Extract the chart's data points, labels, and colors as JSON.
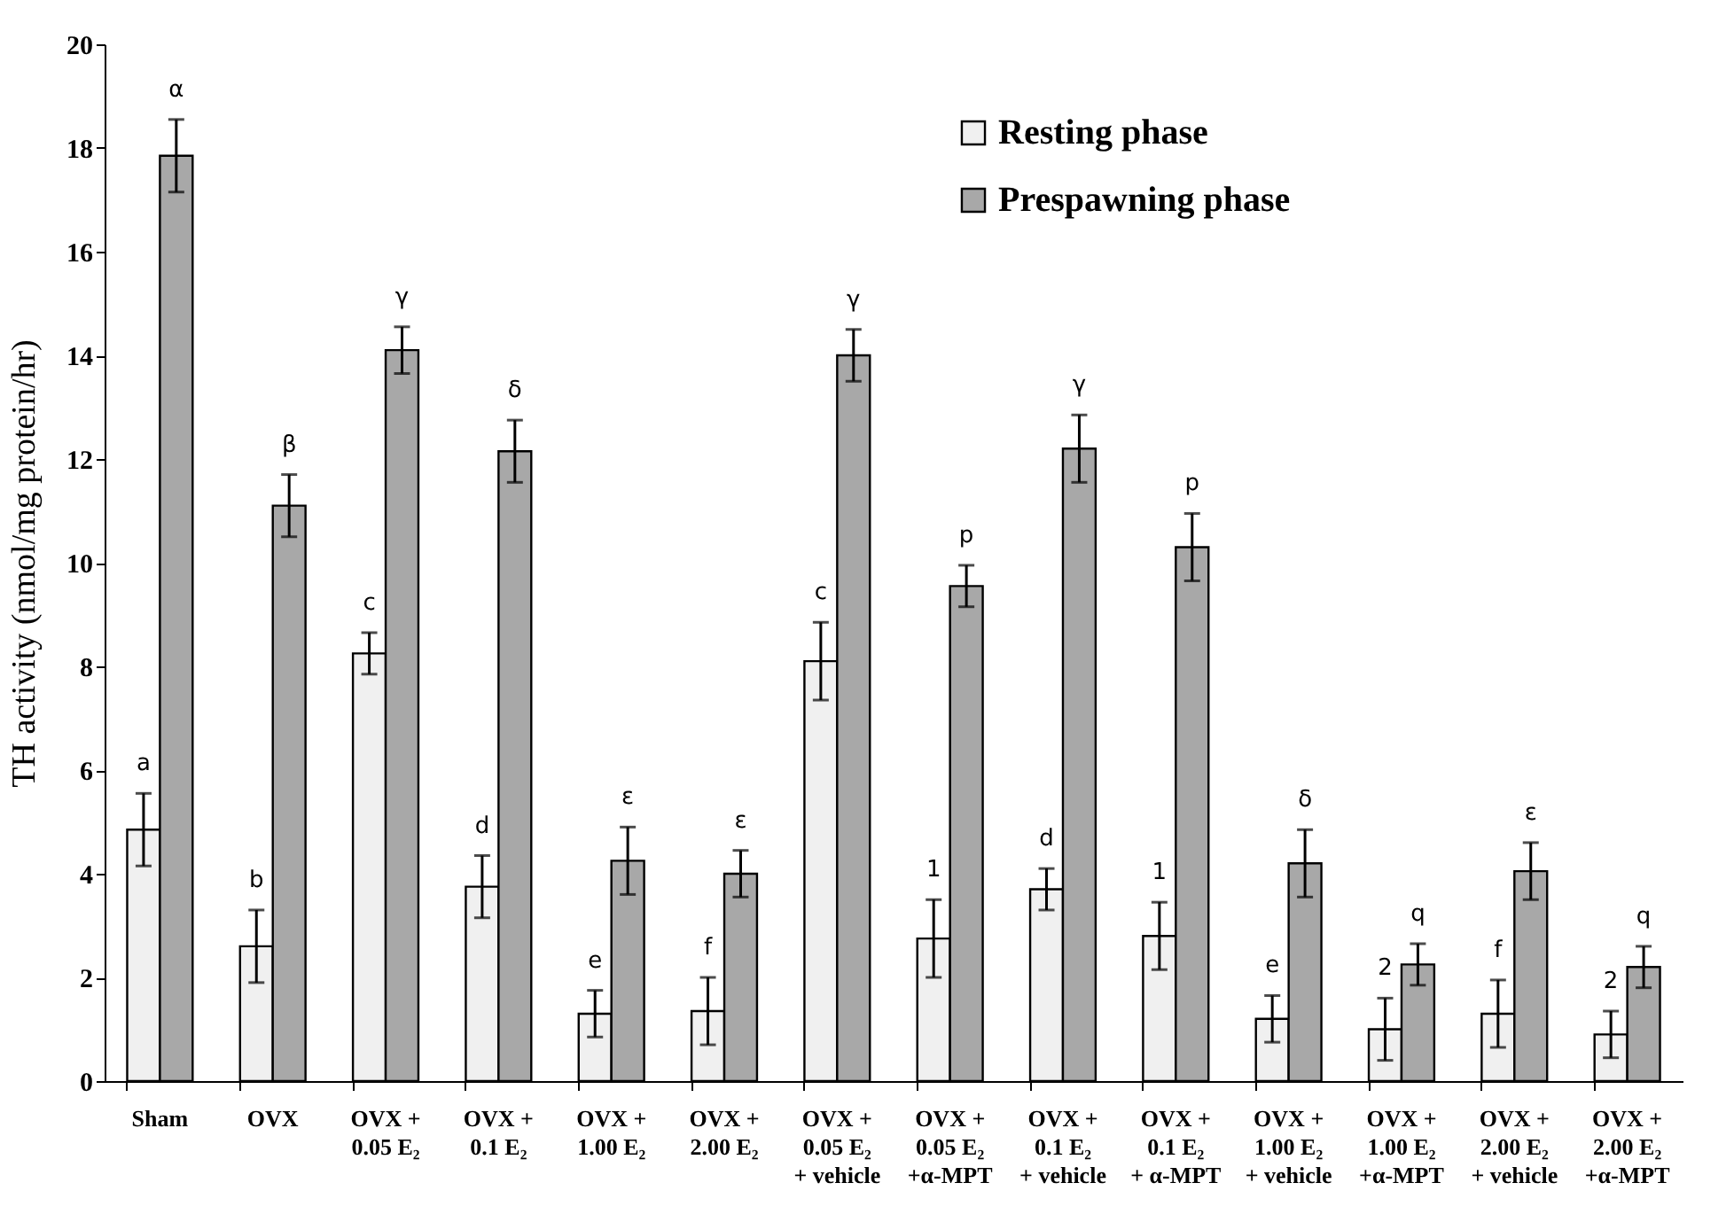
{
  "chart_data": {
    "type": "bar",
    "ylabel": "TH activity (nmol/mg protein/hr)",
    "categories": [
      "Sham",
      "OVX",
      "OVX +\n0.05 E₂",
      "OVX +\n0.1 E₂",
      "OVX +\n1.00 E₂",
      "OVX +\n2.00 E₂",
      "OVX +\n0.05 E₂\n+ vehicle",
      "OVX +\n0.05 E₂\n+α-MPT",
      "OVX +\n0.1 E₂\n+ vehicle",
      "OVX +\n0.1 E₂\n+ α-MPT",
      "OVX +\n1.00 E₂\n+ vehicle",
      "OVX +\n1.00 E₂\n+α-MPT",
      "OVX +\n2.00 E₂\n+ vehicle",
      "OVX +\n2.00 E₂\n+α-MPT"
    ],
    "series": [
      {
        "name": "Resting phase",
        "color": "#f0f0f0",
        "values": [
          4.85,
          2.6,
          8.25,
          3.75,
          1.3,
          1.35,
          8.1,
          2.75,
          3.7,
          2.8,
          1.2,
          1.0,
          1.3,
          0.9
        ],
        "errors": [
          0.7,
          0.7,
          0.4,
          0.6,
          0.45,
          0.65,
          0.75,
          0.75,
          0.4,
          0.65,
          0.45,
          0.6,
          0.65,
          0.45
        ]
      },
      {
        "name": "Prespawning phase",
        "color": "#a8a8a8",
        "values": [
          17.85,
          11.1,
          14.1,
          12.15,
          4.25,
          4.0,
          14.0,
          9.55,
          12.2,
          10.3,
          4.2,
          2.25,
          4.05,
          2.2
        ],
        "errors": [
          0.7,
          0.6,
          0.45,
          0.6,
          0.65,
          0.45,
          0.5,
          0.4,
          0.65,
          0.65,
          0.65,
          0.4,
          0.55,
          0.4
        ]
      }
    ],
    "ylim": [
      0,
      20
    ],
    "yticks": [
      0,
      2,
      4,
      6,
      8,
      10,
      12,
      14,
      16,
      18,
      20
    ],
    "grid": false,
    "legend": "top right",
    "annotations": [
      {
        "text": "a",
        "x": "Sham",
        "y": 5.55
      },
      {
        "text": "α",
        "x": "Sham",
        "y": 18.55
      },
      {
        "text": "b",
        "x": "OVX",
        "y": 3.3
      },
      {
        "text": "β",
        "x": "OVX",
        "y": 11.7
      },
      {
        "text": "c",
        "x": "OVX +\n0.05 E₂",
        "y": 8.65
      },
      {
        "text": "γ",
        "x": "OVX +\n0.05 E₂",
        "y": 14.55
      },
      {
        "text": "d",
        "x": "OVX +\n0.1 E₂",
        "y": 4.35
      },
      {
        "text": "δ",
        "x": "OVX +\n0.1 E₂",
        "y": 12.75
      },
      {
        "text": "e",
        "x": "OVX +\n1.00 E₂",
        "y": 1.75
      },
      {
        "text": "ε",
        "x": "OVX +\n1.00 E₂",
        "y": 4.9
      },
      {
        "text": "f",
        "x": "OVX +\n2.00 E₂",
        "y": 2.0
      },
      {
        "text": "ε",
        "x": "OVX +\n2.00 E₂",
        "y": 4.45
      },
      {
        "text": "c",
        "x": "OVX +\n0.05 E₂\n+ vehicle",
        "y": 8.85
      },
      {
        "text": "γ",
        "x": "OVX +\n0.05 E₂\n+ vehicle",
        "y": 14.5
      },
      {
        "text": "1",
        "x": "OVX +\n0.05 E₂\n+α-MPT",
        "y": 3.5
      },
      {
        "text": "p",
        "x": "OVX +\n0.05 E₂\n+α-MPT",
        "y": 9.95
      },
      {
        "text": "d",
        "x": "OVX +\n0.1 E₂\n+ vehicle",
        "y": 4.1
      },
      {
        "text": "γ",
        "x": "OVX +\n0.1 E₂\n+ vehicle",
        "y": 12.85
      },
      {
        "text": "1",
        "x": "OVX +\n0.1 E₂\n+ α-MPT",
        "y": 3.45
      },
      {
        "text": "p",
        "x": "OVX +\n0.1 E₂\n+ α-MPT",
        "y": 10.95
      },
      {
        "text": "e",
        "x": "OVX +\n1.00 E₂\n+ vehicle",
        "y": 1.65
      },
      {
        "text": "δ",
        "x": "OVX +\n1.00 E₂\n+ vehicle",
        "y": 4.85
      },
      {
        "text": "2",
        "x": "OVX +\n1.00 E₂\n+α-MPT",
        "y": 1.6
      },
      {
        "text": "q",
        "x": "OVX +\n1.00 E₂\n+α-MPT",
        "y": 2.65
      },
      {
        "text": "f",
        "x": "OVX +\n2.00 E₂\n+ vehicle",
        "y": 1.95
      },
      {
        "text": "ε",
        "x": "OVX +\n2.00 E₂\n+ vehicle",
        "y": 4.6
      },
      {
        "text": "2",
        "x": "OVX +\n2.00 E₂\n+α-MPT",
        "y": 1.35
      },
      {
        "text": "q",
        "x": "OVX +\n2.00 E₂\n+α-MPT",
        "y": 2.6
      }
    ]
  }
}
